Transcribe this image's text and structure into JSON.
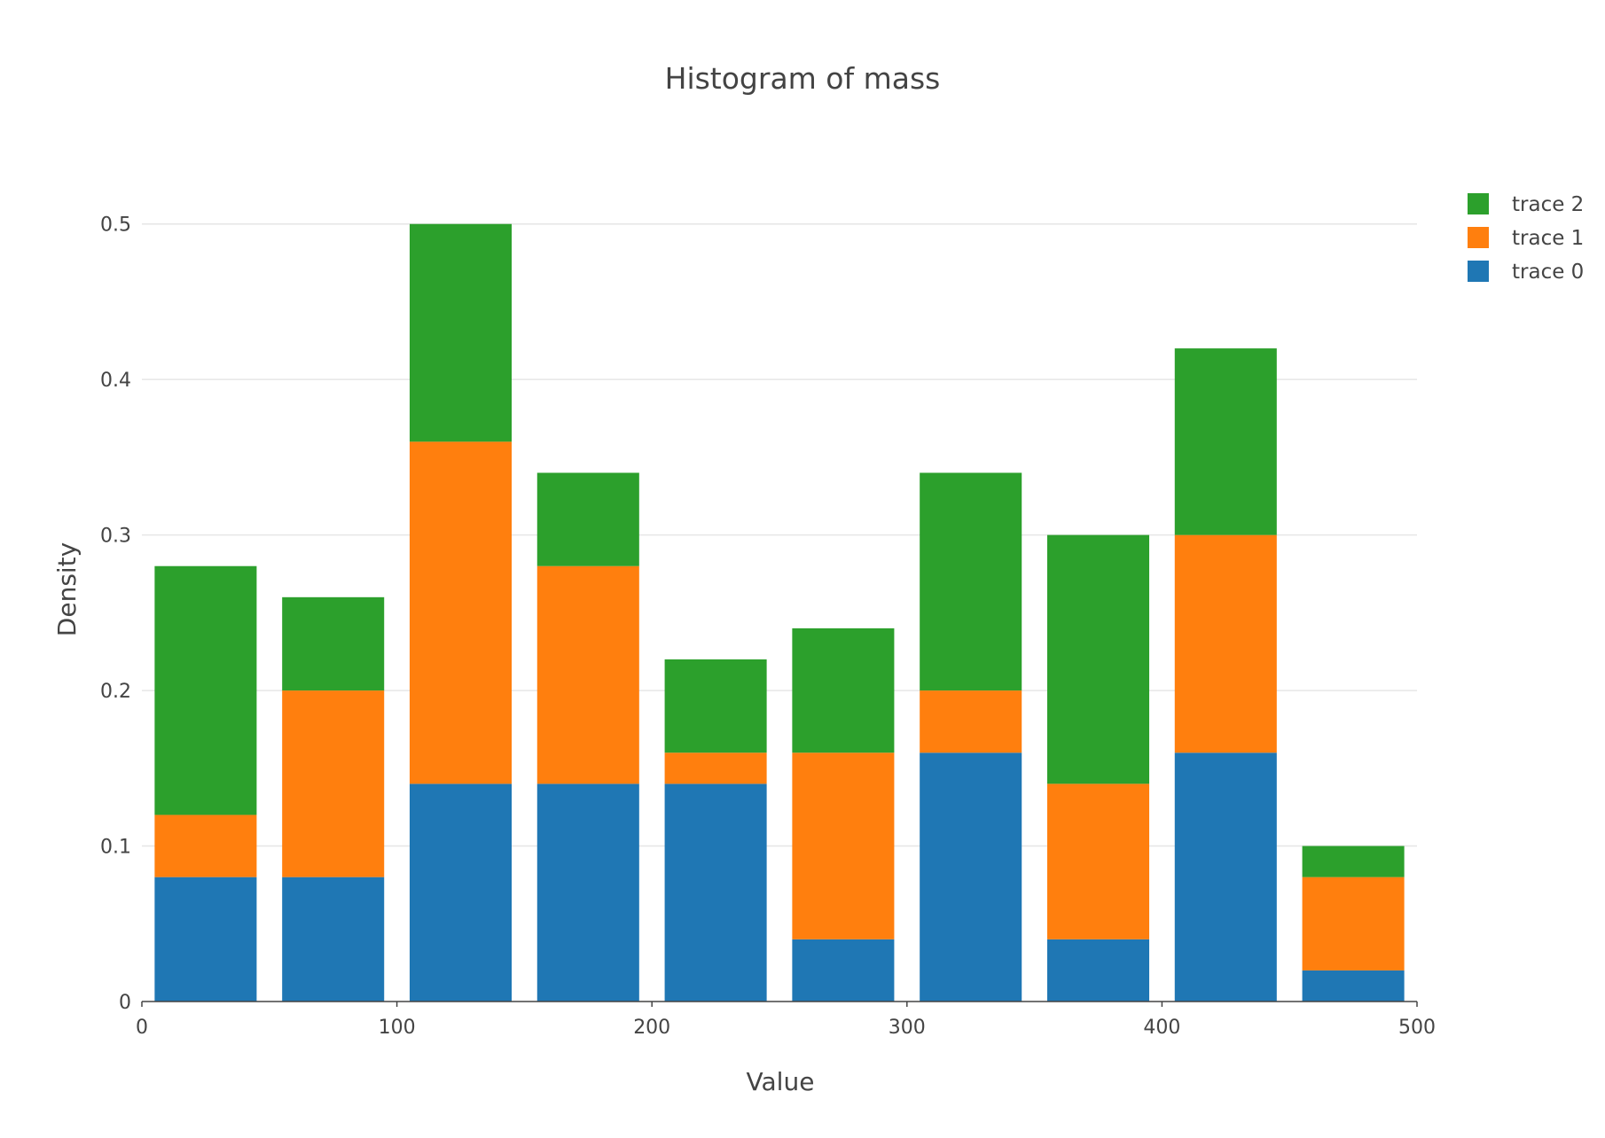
{
  "chart_data": {
    "type": "bar",
    "barmode": "stack",
    "title": "Histogram of mass",
    "xlabel": "Value",
    "ylabel": "Density",
    "xlim": [
      0,
      500
    ],
    "ylim": [
      0,
      0.55
    ],
    "xticks": [
      0,
      100,
      200,
      300,
      400,
      500
    ],
    "yticks": [
      0,
      0.1,
      0.2,
      0.3,
      0.4,
      0.5
    ],
    "xtick_labels": [
      "0",
      "100",
      "200",
      "300",
      "400",
      "500"
    ],
    "ytick_labels": [
      "0",
      "0.1",
      "0.2",
      "0.3",
      "0.4",
      "0.5"
    ],
    "grid": true,
    "legend_position": "top-right",
    "bins": [
      [
        5,
        45
      ],
      [
        55,
        95
      ],
      [
        105,
        145
      ],
      [
        155,
        195
      ],
      [
        205,
        245
      ],
      [
        255,
        295
      ],
      [
        305,
        345
      ],
      [
        355,
        395
      ],
      [
        405,
        445
      ],
      [
        455,
        495
      ]
    ],
    "series": [
      {
        "name": "trace 0",
        "color": "#1f77b4",
        "values": [
          0.08,
          0.08,
          0.14,
          0.14,
          0.14,
          0.04,
          0.16,
          0.04,
          0.16,
          0.02
        ]
      },
      {
        "name": "trace 1",
        "color": "#ff7f0e",
        "values": [
          0.04,
          0.12,
          0.22,
          0.14,
          0.02,
          0.12,
          0.04,
          0.1,
          0.14,
          0.06
        ]
      },
      {
        "name": "trace 2",
        "color": "#2ca02c",
        "values": [
          0.16,
          0.06,
          0.14,
          0.06,
          0.06,
          0.08,
          0.14,
          0.16,
          0.12,
          0.02
        ]
      }
    ]
  }
}
